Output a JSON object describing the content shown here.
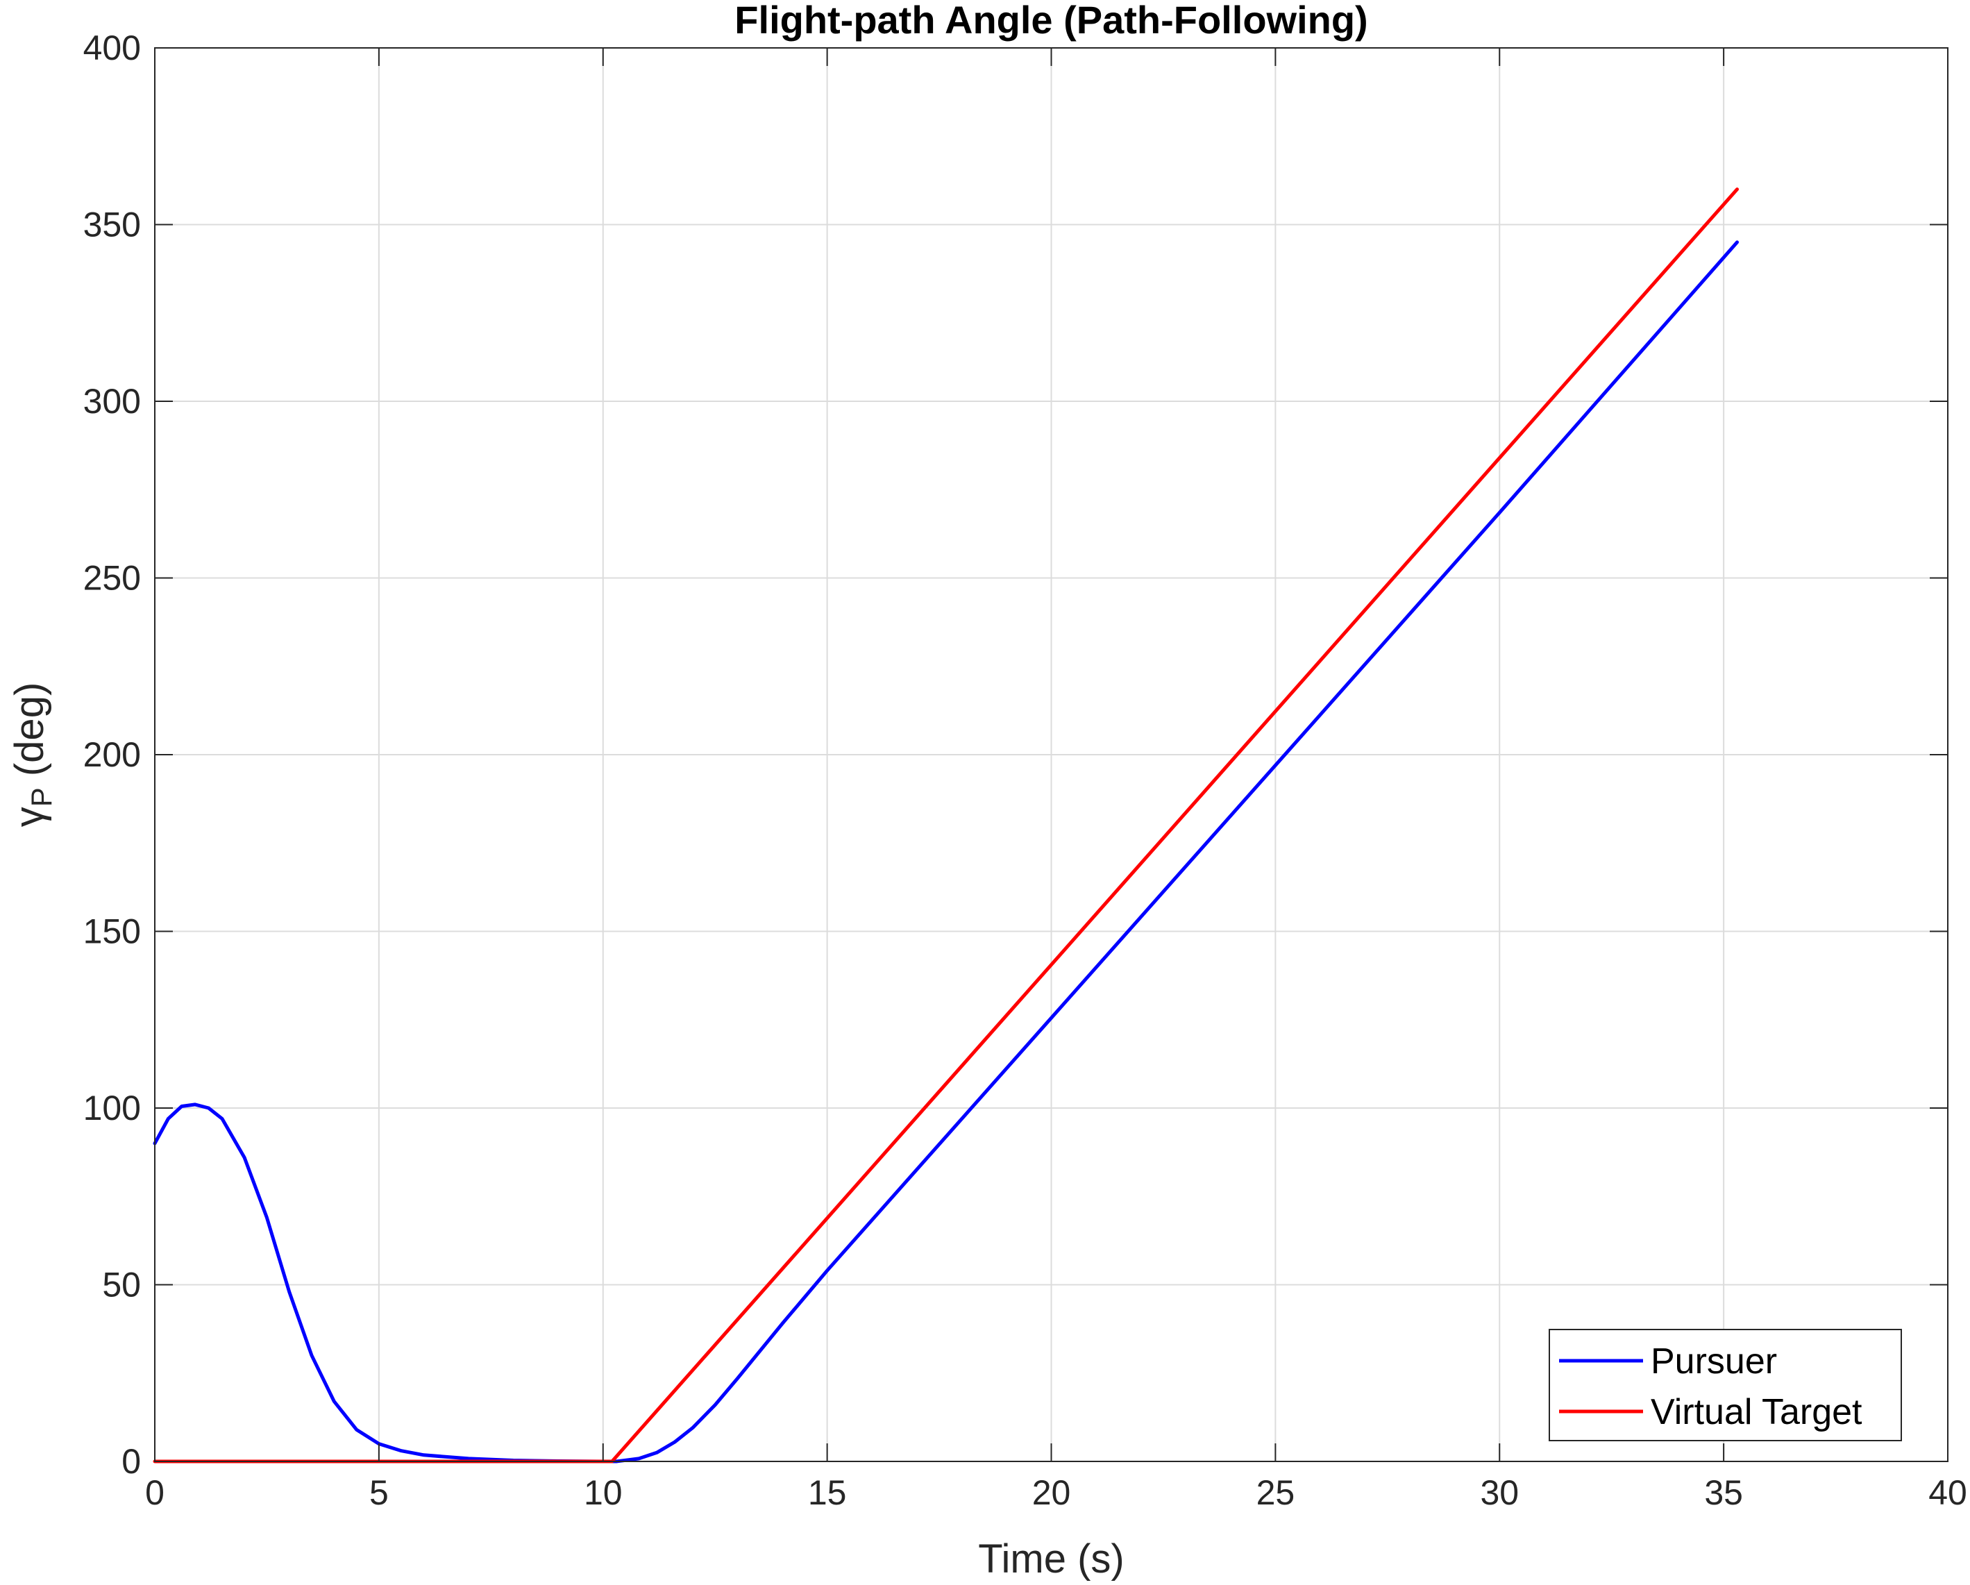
{
  "chart_data": {
    "type": "line",
    "title": "Flight-path Angle (Path-Following)",
    "xlabel": "Time (s)",
    "ylabel_main": "γ",
    "ylabel_sub": "P",
    "ylabel_unit": " (deg)",
    "xlim": [
      0,
      40
    ],
    "ylim": [
      0,
      400
    ],
    "xticks": [
      0,
      5,
      10,
      15,
      20,
      25,
      30,
      35,
      40
    ],
    "yticks": [
      0,
      50,
      100,
      150,
      200,
      250,
      300,
      350,
      400
    ],
    "grid": true,
    "legend_position": "bottom-right",
    "series": [
      {
        "name": "Pursuer",
        "color": "#0000ff",
        "x": [
          0,
          0.3,
          0.6,
          0.9,
          1.2,
          1.5,
          2.0,
          2.5,
          3.0,
          3.5,
          4.0,
          4.5,
          5.0,
          5.5,
          6.0,
          7.0,
          8.0,
          9.0,
          10.0,
          10.3,
          10.8,
          11.2,
          11.6,
          12.0,
          12.5,
          13.0,
          14.0,
          15.0,
          20.0,
          25.0,
          30.0,
          35.3
        ],
        "y": [
          90,
          97,
          100.5,
          101,
          100,
          97,
          86,
          69,
          48,
          30,
          17,
          9,
          5,
          3,
          1.8,
          0.8,
          0.3,
          0.1,
          0,
          0,
          0.8,
          2.5,
          5.5,
          9.5,
          16,
          23.5,
          39,
          54,
          125.5,
          197,
          268.5,
          345
        ]
      },
      {
        "name": "Virtual Target",
        "color": "#ff0000",
        "x": [
          0,
          10.2,
          35.3
        ],
        "y": [
          0,
          0,
          360
        ]
      }
    ]
  }
}
